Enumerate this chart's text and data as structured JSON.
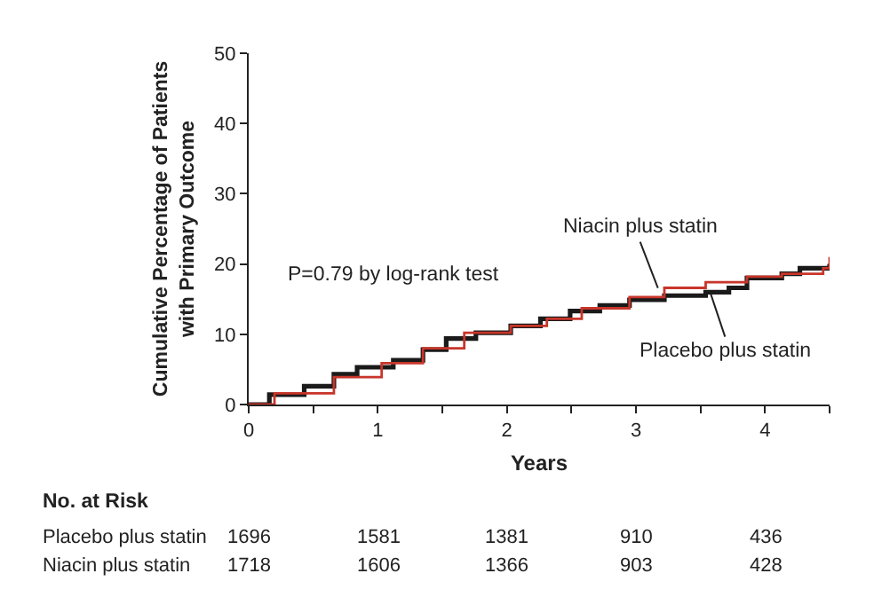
{
  "chart_data": {
    "type": "step",
    "xlabel": "Years",
    "ylabel": "Cumulative Percentage of Patients\nwith Primary Outcome",
    "xlim": [
      0,
      4.5
    ],
    "xticks": [
      0,
      {
        "value": 0.5,
        "label": null
      },
      1,
      {
        "value": 1.5,
        "label": null
      },
      2,
      {
        "value": 2.5,
        "label": null
      },
      3,
      {
        "value": 3.5,
        "label": null
      },
      4,
      {
        "value": 4.5,
        "label": null
      }
    ],
    "ylim": [
      0,
      50
    ],
    "yticks": [
      0,
      10,
      20,
      30,
      40,
      50
    ],
    "series": [
      {
        "color": "#1a1a1a",
        "x": [
          0,
          0.16,
          0.43,
          0.66,
          0.84,
          1.12,
          1.35,
          1.53,
          1.76,
          2.03,
          2.26,
          2.49,
          2.72,
          2.95,
          3.22,
          3.54,
          3.72,
          3.86,
          4.13,
          4.27,
          4.5
        ],
        "values": [
          0,
          1.4,
          2.6,
          4.3,
          5.3,
          6.3,
          7.8,
          9.4,
          10.2,
          11.2,
          12.2,
          13.3,
          14.1,
          14.9,
          15.5,
          16.0,
          16.6,
          18.0,
          18.6,
          19.4,
          20.0
        ]
      },
      {
        "color": "#c8352a",
        "x": [
          0,
          0.2,
          0.66,
          1.03,
          1.35,
          1.67,
          2.03,
          2.31,
          2.58,
          2.95,
          3.22,
          3.54,
          3.86,
          4.13,
          4.45,
          4.5
        ],
        "values": [
          0,
          1.6,
          3.9,
          5.9,
          8.0,
          10.2,
          11.2,
          12.2,
          13.7,
          15.3,
          16.6,
          17.4,
          18.2,
          18.6,
          19.4,
          21.0
        ]
      }
    ],
    "annotations": [
      {
        "text": "Niacin plus statin",
        "x": 3.17,
        "y": 16.6
      },
      {
        "text": "Placebo plus statin",
        "x": 3.58,
        "y": 15.7
      },
      "P=0.79 by log-rank test",
      "No. at Risk",
      "Placebo plus statin",
      "1696",
      "1581",
      "1381",
      "910",
      "436",
      "Niacin plus statin",
      "1718",
      "1606",
      "1366",
      "903",
      "428"
    ]
  }
}
